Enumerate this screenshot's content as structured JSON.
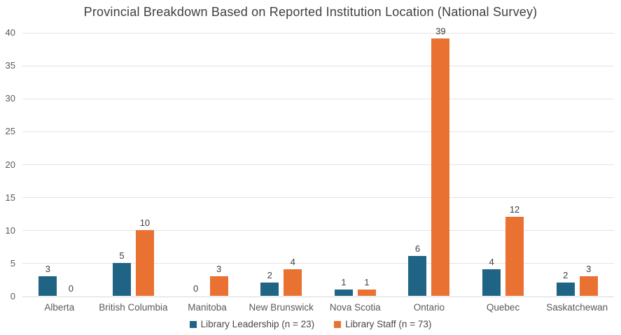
{
  "chart_data": {
    "type": "bar",
    "title": "Provincial Breakdown Based on Reported Institution Location (National Survey)",
    "categories": [
      "Alberta",
      "British Columbia",
      "Manitoba",
      "New Brunswick",
      "Nova Scotia",
      "Ontario",
      "Quebec",
      "Saskatchewan"
    ],
    "series": [
      {
        "name": "Library Leadership (n = 23)",
        "color": "#1F6484",
        "values": [
          3,
          5,
          0,
          2,
          1,
          6,
          4,
          2
        ]
      },
      {
        "name": "Library Staff (n = 73)",
        "color": "#E97132",
        "values": [
          0,
          10,
          3,
          4,
          1,
          39,
          12,
          3
        ]
      }
    ],
    "xlabel": "",
    "ylabel": "",
    "ylim": [
      0,
      40
    ],
    "y_ticks": [
      0,
      5,
      10,
      15,
      20,
      25,
      30,
      35,
      40
    ],
    "grid": "horizontal",
    "legend_position": "bottom",
    "data_labels": true
  }
}
